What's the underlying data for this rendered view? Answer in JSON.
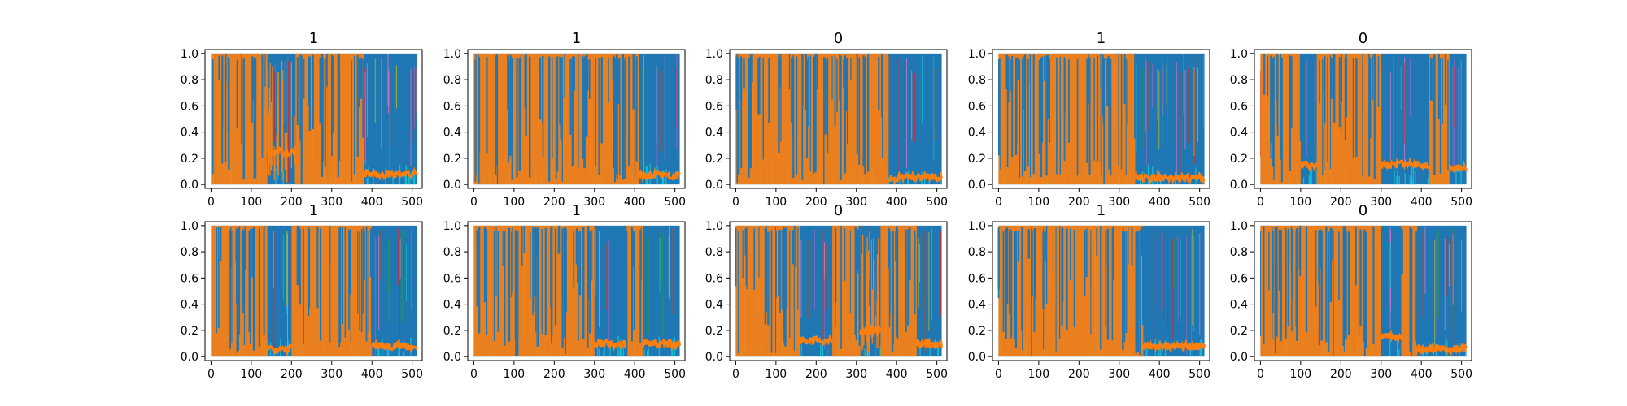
{
  "figure": {
    "background": "#ffffff"
  },
  "chart_data": [
    {
      "type": "line",
      "title": "1",
      "xlim": [
        -15,
        525
      ],
      "ylim": [
        -0.03,
        1.03
      ],
      "xticks": [
        0,
        100,
        200,
        300,
        400,
        500
      ],
      "yticks": [
        0.0,
        0.2,
        0.4,
        0.6,
        0.8,
        1.0
      ],
      "xtick_labels": [
        "0",
        "100",
        "200",
        "300",
        "400",
        "500"
      ],
      "ytick_labels": [
        "0.0",
        "0.2",
        "0.4",
        "0.6",
        "0.8",
        "1.0"
      ],
      "segments": [
        {
          "x": [
            0,
            10
          ],
          "dominant": "orange",
          "level": 0.4
        },
        {
          "x": [
            10,
            140
          ],
          "dominant": "orange",
          "level": 0.3
        },
        {
          "x": [
            140,
            210
          ],
          "dominant": "mixed",
          "level": 0.25
        },
        {
          "x": [
            210,
            290
          ],
          "dominant": "orange",
          "level": 0.3
        },
        {
          "x": [
            290,
            380
          ],
          "dominant": "orange",
          "level": 0.35
        },
        {
          "x": [
            380,
            512
          ],
          "dominant": "blue",
          "level": 0.08
        }
      ],
      "series": [
        {
          "color": "#ff7f0e",
          "summary": "orange line: high in 0-380, about 0.08 in 380-512"
        },
        {
          "color": "#1f77b4",
          "summary": "blue line: fills band from 380 to 512"
        }
      ]
    },
    {
      "type": "line",
      "title": "1",
      "xlim": [
        -15,
        525
      ],
      "ylim": [
        -0.03,
        1.03
      ],
      "xticks": [
        0,
        100,
        200,
        300,
        400,
        500
      ],
      "yticks": [
        0.0,
        0.2,
        0.4,
        0.6,
        0.8,
        1.0
      ],
      "xtick_labels": [
        "0",
        "100",
        "200",
        "300",
        "400",
        "500"
      ],
      "ytick_labels": [
        "0.0",
        "0.2",
        "0.4",
        "0.6",
        "0.8",
        "1.0"
      ],
      "segments": [
        {
          "x": [
            0,
            410
          ],
          "dominant": "orange",
          "level": 0.45
        },
        {
          "x": [
            410,
            512
          ],
          "dominant": "blue",
          "level": 0.07
        }
      ],
      "series": [
        {
          "color": "#ff7f0e",
          "summary": "orange line: high in 0-410, about 0.07 in 410-512"
        },
        {
          "color": "#1f77b4",
          "summary": "blue line: fills band from 410 to 512"
        }
      ]
    },
    {
      "type": "line",
      "title": "0",
      "xlim": [
        -15,
        525
      ],
      "ylim": [
        -0.03,
        1.03
      ],
      "xticks": [
        0,
        100,
        200,
        300,
        400,
        500
      ],
      "yticks": [
        0.0,
        0.2,
        0.4,
        0.6,
        0.8,
        1.0
      ],
      "xtick_labels": [
        "0",
        "100",
        "200",
        "300",
        "400",
        "500"
      ],
      "ytick_labels": [
        "0.0",
        "0.2",
        "0.4",
        "0.6",
        "0.8",
        "1.0"
      ],
      "segments": [
        {
          "x": [
            0,
            380
          ],
          "dominant": "orange",
          "level": 0.35
        },
        {
          "x": [
            380,
            512
          ],
          "dominant": "blue",
          "level": 0.05
        }
      ],
      "series": [
        {
          "color": "#ff7f0e",
          "summary": "orange line: high in 0-380, about 0.05 in 380-512"
        },
        {
          "color": "#1f77b4",
          "summary": "blue line: fills band from 380 to 512"
        }
      ]
    },
    {
      "type": "line",
      "title": "1",
      "xlim": [
        -15,
        525
      ],
      "ylim": [
        -0.03,
        1.03
      ],
      "xticks": [
        0,
        100,
        200,
        300,
        400,
        500
      ],
      "yticks": [
        0.0,
        0.2,
        0.4,
        0.6,
        0.8,
        1.0
      ],
      "xtick_labels": [
        "0",
        "100",
        "200",
        "300",
        "400",
        "500"
      ],
      "ytick_labels": [
        "0.0",
        "0.2",
        "0.4",
        "0.6",
        "0.8",
        "1.0"
      ],
      "segments": [
        {
          "x": [
            0,
            340
          ],
          "dominant": "orange",
          "level": 0.4
        },
        {
          "x": [
            340,
            512
          ],
          "dominant": "blue",
          "level": 0.05
        }
      ],
      "series": [
        {
          "color": "#ff7f0e",
          "summary": "orange line: high in 0-340, about 0.05 in 340-512"
        },
        {
          "color": "#1f77b4",
          "summary": "blue line: fills band from 340 to 512"
        }
      ]
    },
    {
      "type": "line",
      "title": "0",
      "xlim": [
        -15,
        525
      ],
      "ylim": [
        -0.03,
        1.03
      ],
      "xticks": [
        0,
        100,
        200,
        300,
        400,
        500
      ],
      "yticks": [
        0.0,
        0.2,
        0.4,
        0.6,
        0.8,
        1.0
      ],
      "xtick_labels": [
        "0",
        "100",
        "200",
        "300",
        "400",
        "500"
      ],
      "ytick_labels": [
        "0.0",
        "0.2",
        "0.4",
        "0.6",
        "0.8",
        "1.0"
      ],
      "segments": [
        {
          "x": [
            0,
            100
          ],
          "dominant": "orange",
          "level": 0.35
        },
        {
          "x": [
            100,
            140
          ],
          "dominant": "blue",
          "level": 0.15
        },
        {
          "x": [
            140,
            300
          ],
          "dominant": "orange",
          "level": 0.35
        },
        {
          "x": [
            300,
            420
          ],
          "dominant": "blue",
          "level": 0.15
        },
        {
          "x": [
            420,
            470
          ],
          "dominant": "orange",
          "level": 0.45
        },
        {
          "x": [
            470,
            512
          ],
          "dominant": "blue",
          "level": 0.12
        }
      ],
      "series": [
        {
          "color": "#ff7f0e",
          "summary": "orange line: alternating high bands"
        },
        {
          "color": "#1f77b4",
          "summary": "blue line: bands at 100-140, 300-420, 470-512"
        }
      ]
    },
    {
      "type": "line",
      "title": "1",
      "xlim": [
        -15,
        525
      ],
      "ylim": [
        -0.03,
        1.03
      ],
      "xticks": [
        0,
        100,
        200,
        300,
        400,
        500
      ],
      "yticks": [
        0.0,
        0.2,
        0.4,
        0.6,
        0.8,
        1.0
      ],
      "xtick_labels": [
        "0",
        "100",
        "200",
        "300",
        "400",
        "500"
      ],
      "ytick_labels": [
        "0.0",
        "0.2",
        "0.4",
        "0.6",
        "0.8",
        "1.0"
      ],
      "segments": [
        {
          "x": [
            0,
            140
          ],
          "dominant": "orange",
          "level": 0.4
        },
        {
          "x": [
            140,
            200
          ],
          "dominant": "blue",
          "level": 0.06
        },
        {
          "x": [
            200,
            400
          ],
          "dominant": "orange",
          "level": 0.35
        },
        {
          "x": [
            400,
            512
          ],
          "dominant": "blue",
          "level": 0.08
        }
      ],
      "series": [
        {
          "color": "#ff7f0e",
          "summary": "orange line: high in 0-140 and 200-400"
        },
        {
          "color": "#1f77b4",
          "summary": "blue line: bands at 140-200 and 400-512"
        }
      ]
    },
    {
      "type": "line",
      "title": "1",
      "xlim": [
        -15,
        525
      ],
      "ylim": [
        -0.03,
        1.03
      ],
      "xticks": [
        0,
        100,
        200,
        300,
        400,
        500
      ],
      "yticks": [
        0.0,
        0.2,
        0.4,
        0.6,
        0.8,
        1.0
      ],
      "xtick_labels": [
        "0",
        "100",
        "200",
        "300",
        "400",
        "500"
      ],
      "ytick_labels": [
        "0.0",
        "0.2",
        "0.4",
        "0.6",
        "0.8",
        "1.0"
      ],
      "segments": [
        {
          "x": [
            0,
            300
          ],
          "dominant": "orange",
          "level": 0.45
        },
        {
          "x": [
            300,
            380
          ],
          "dominant": "blue",
          "level": 0.1
        },
        {
          "x": [
            380,
            420
          ],
          "dominant": "orange",
          "level": 0.5
        },
        {
          "x": [
            420,
            512
          ],
          "dominant": "blue",
          "level": 0.1
        }
      ],
      "series": [
        {
          "color": "#ff7f0e",
          "summary": "orange line: high in 0-300 and 380-420"
        },
        {
          "color": "#1f77b4",
          "summary": "blue line: bands at 300-380 and 420-512"
        }
      ]
    },
    {
      "type": "line",
      "title": "0",
      "xlim": [
        -15,
        525
      ],
      "ylim": [
        -0.03,
        1.03
      ],
      "xticks": [
        0,
        100,
        200,
        300,
        400,
        500
      ],
      "yticks": [
        0.0,
        0.2,
        0.4,
        0.6,
        0.8,
        1.0
      ],
      "xtick_labels": [
        "0",
        "100",
        "200",
        "300",
        "400",
        "500"
      ],
      "ytick_labels": [
        "0.0",
        "0.2",
        "0.4",
        "0.6",
        "0.8",
        "1.0"
      ],
      "segments": [
        {
          "x": [
            0,
            160
          ],
          "dominant": "orange",
          "level": 0.4
        },
        {
          "x": [
            160,
            240
          ],
          "dominant": "blue",
          "level": 0.12
        },
        {
          "x": [
            240,
            310
          ],
          "dominant": "orange",
          "level": 0.4
        },
        {
          "x": [
            310,
            360
          ],
          "dominant": "mixed",
          "level": 0.2
        },
        {
          "x": [
            360,
            450
          ],
          "dominant": "orange",
          "level": 0.4
        },
        {
          "x": [
            450,
            512
          ],
          "dominant": "blue",
          "level": 0.1
        }
      ],
      "series": [
        {
          "color": "#ff7f0e",
          "summary": "orange line: high in 0-160, 240-310, 360-450"
        },
        {
          "color": "#1f77b4",
          "summary": "blue line: bands at 160-240 and 450-512"
        }
      ]
    },
    {
      "type": "line",
      "title": "1",
      "xlim": [
        -15,
        525
      ],
      "ylim": [
        -0.03,
        1.03
      ],
      "xticks": [
        0,
        100,
        200,
        300,
        400,
        500
      ],
      "yticks": [
        0.0,
        0.2,
        0.4,
        0.6,
        0.8,
        1.0
      ],
      "xtick_labels": [
        "0",
        "100",
        "200",
        "300",
        "400",
        "500"
      ],
      "ytick_labels": [
        "0.0",
        "0.2",
        "0.4",
        "0.6",
        "0.8",
        "1.0"
      ],
      "segments": [
        {
          "x": [
            0,
            360
          ],
          "dominant": "orange",
          "level": 0.45
        },
        {
          "x": [
            360,
            512
          ],
          "dominant": "blue",
          "level": 0.08
        }
      ],
      "series": [
        {
          "color": "#ff7f0e",
          "summary": "orange line: high in 0-360, about 0.08 in 360-512"
        },
        {
          "color": "#1f77b4",
          "summary": "blue line: fills band from 360 to 512"
        }
      ]
    },
    {
      "type": "line",
      "title": "0",
      "xlim": [
        -15,
        525
      ],
      "ylim": [
        -0.03,
        1.03
      ],
      "xticks": [
        0,
        100,
        200,
        300,
        400,
        500
      ],
      "yticks": [
        0.0,
        0.2,
        0.4,
        0.6,
        0.8,
        1.0
      ],
      "xtick_labels": [
        "0",
        "100",
        "200",
        "300",
        "400",
        "500"
      ],
      "ytick_labels": [
        "0.0",
        "0.2",
        "0.4",
        "0.6",
        "0.8",
        "1.0"
      ],
      "segments": [
        {
          "x": [
            0,
            300
          ],
          "dominant": "orange",
          "level": 0.3
        },
        {
          "x": [
            300,
            350
          ],
          "dominant": "blue",
          "level": 0.15
        },
        {
          "x": [
            350,
            390
          ],
          "dominant": "orange",
          "level": 0.35
        },
        {
          "x": [
            390,
            512
          ],
          "dominant": "blue",
          "level": 0.06
        }
      ],
      "series": [
        {
          "color": "#ff7f0e",
          "summary": "orange line: high in 0-300 and 350-390"
        },
        {
          "color": "#1f77b4",
          "summary": "blue line: bands at 300-350 and 390-512"
        }
      ]
    }
  ]
}
